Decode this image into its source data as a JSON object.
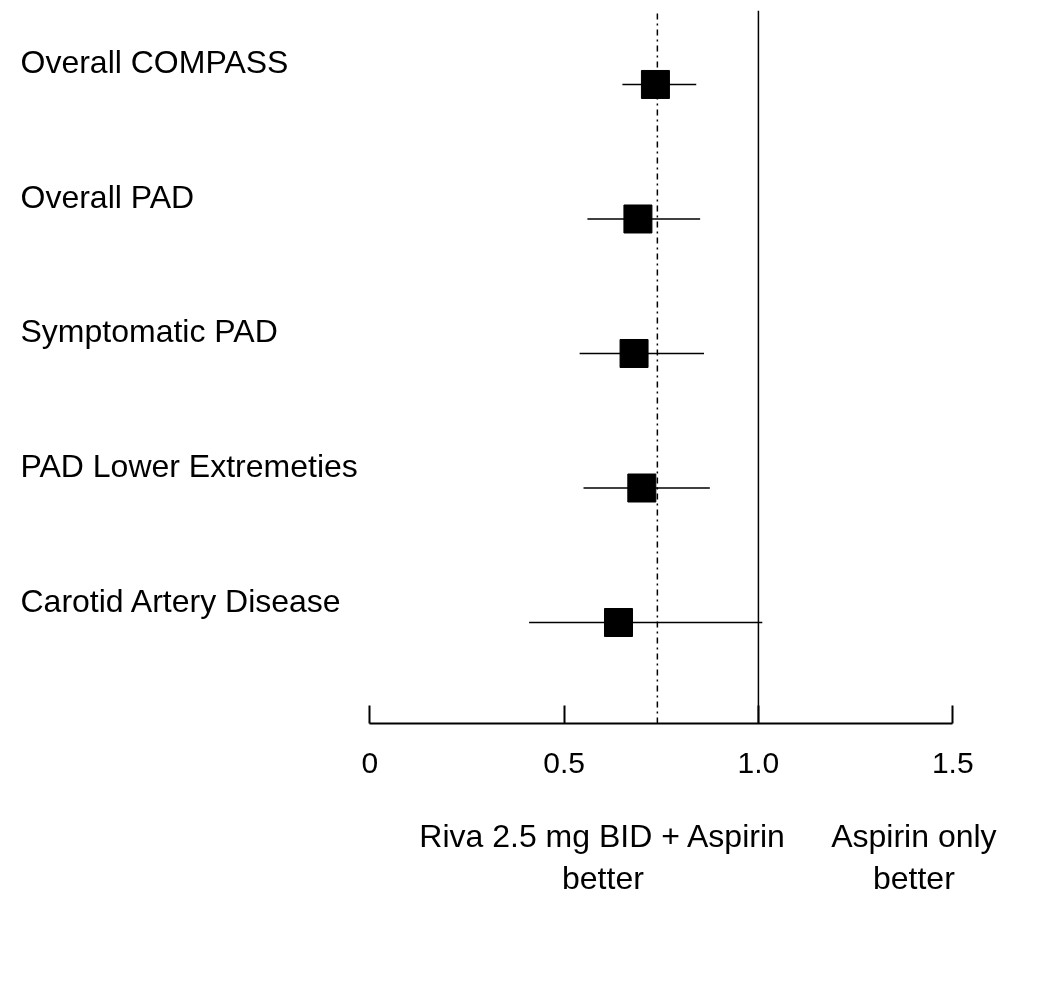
{
  "chart_data": {
    "type": "scatter",
    "orientation": "horizontal",
    "marker": "square",
    "grid": false,
    "categories": [
      "Overall COMPASS",
      "Overall PAD",
      "Symptomatic PAD",
      "PAD Lower Extremeties",
      "Carotid Artery Disease"
    ],
    "series": [
      {
        "color": "#000000",
        "values": [
          0.735,
          0.69,
          0.68,
          0.7,
          0.64
        ],
        "errors": [
          [
            0.65,
            0.84
          ],
          [
            0.56,
            0.85
          ],
          [
            0.54,
            0.86
          ],
          [
            0.55,
            0.875
          ],
          [
            0.41,
            1.01
          ]
        ]
      }
    ],
    "xlim": [
      0,
      1.5
    ],
    "xticks": [
      0,
      0.5,
      {
        "value": 1.0,
        "label": "1.0"
      },
      1.5
    ],
    "ref_lines": [
      {
        "axis": "x",
        "value": 1.0,
        "color": "#000000",
        "line_style": "solid"
      },
      {
        "axis": "x",
        "value": 0.74,
        "color": "#000000",
        "line_style": "dashdot"
      }
    ],
    "annotations": [
      "Riva 2.5 mg BID + Aspirin better",
      "Aspirin only better"
    ]
  }
}
